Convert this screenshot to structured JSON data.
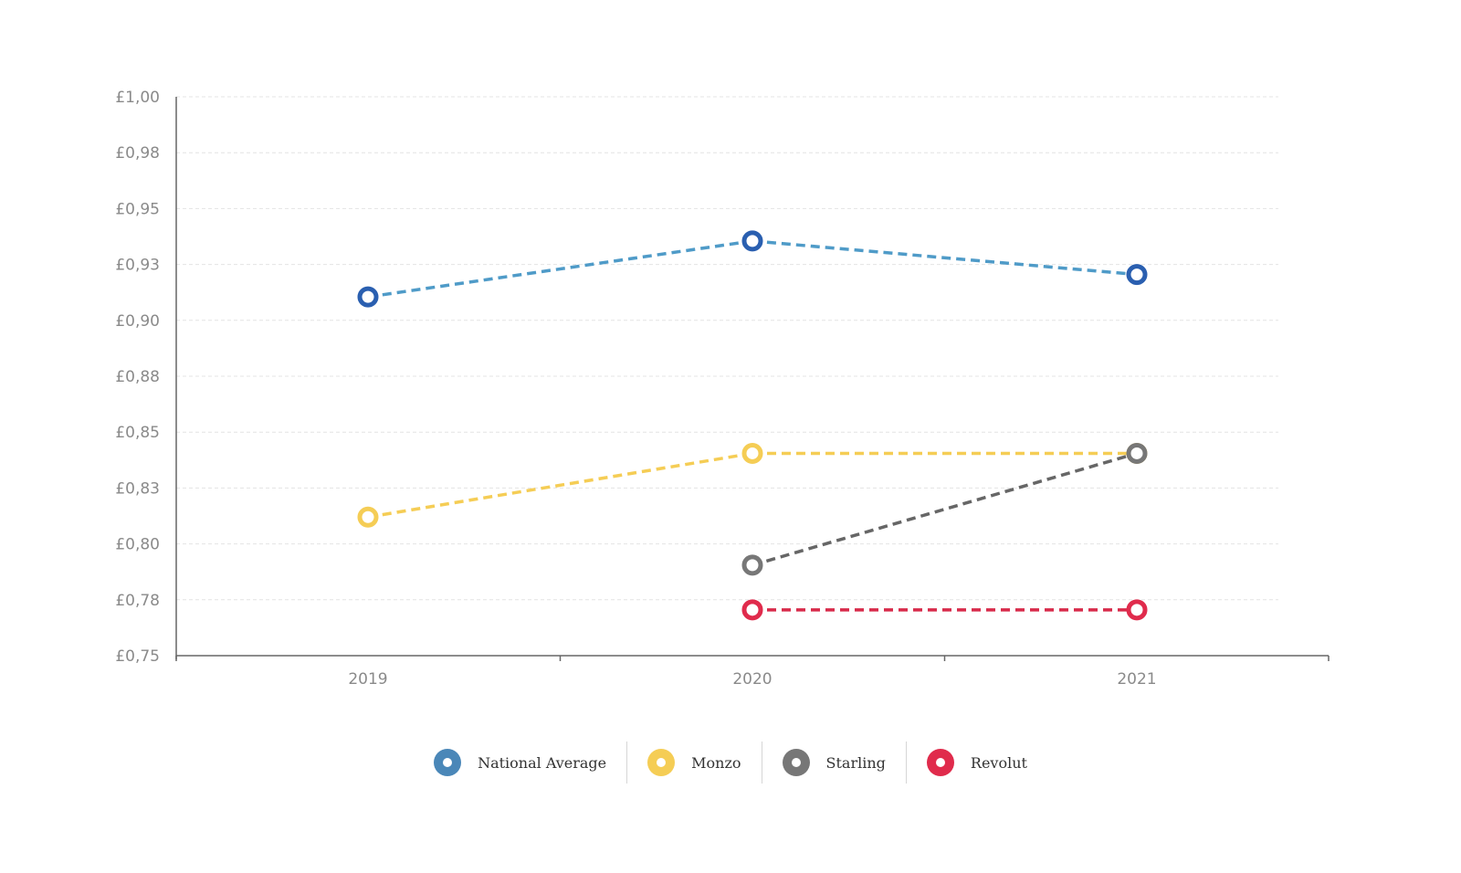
{
  "chart_data": {
    "type": "line",
    "title": "",
    "xlabel": "",
    "ylabel": "",
    "categories": [
      "2019",
      "2020",
      "2021"
    ],
    "ylim": [
      0.75,
      1.0
    ],
    "yticks": [
      "£0,75",
      "£0,78",
      "£0,80",
      "£0,83",
      "£0,85",
      "£0,88",
      "£0,90",
      "£0,93",
      "£0,95",
      "£0,98",
      "£1,00"
    ],
    "grid": true,
    "line_style": "dashed",
    "legend_position": "bottom",
    "series": [
      {
        "name": "National Average",
        "color": "#4f9bc8",
        "marker_color": "#2a5fb0",
        "values": [
          0.9105,
          0.9355,
          0.9205
        ]
      },
      {
        "name": "Monzo",
        "color": "#f5cd55",
        "marker_color": "#f5cd55",
        "values": [
          0.812,
          0.8405,
          0.8405
        ]
      },
      {
        "name": "Starling",
        "color": "#666666",
        "marker_color": "#777777",
        "values": [
          null,
          0.7905,
          0.8405
        ]
      },
      {
        "name": "Revolut",
        "color": "#d82a4a",
        "marker_color": "#e02b4c",
        "values": [
          null,
          0.7705,
          0.7705
        ]
      }
    ]
  },
  "legend": {
    "items": [
      {
        "label": "National Average",
        "color": "#4a87b8"
      },
      {
        "label": "Monzo",
        "color": "#f5cd55"
      },
      {
        "label": "Starling",
        "color": "#777777"
      },
      {
        "label": "Revolut",
        "color": "#e02b4c"
      }
    ]
  }
}
